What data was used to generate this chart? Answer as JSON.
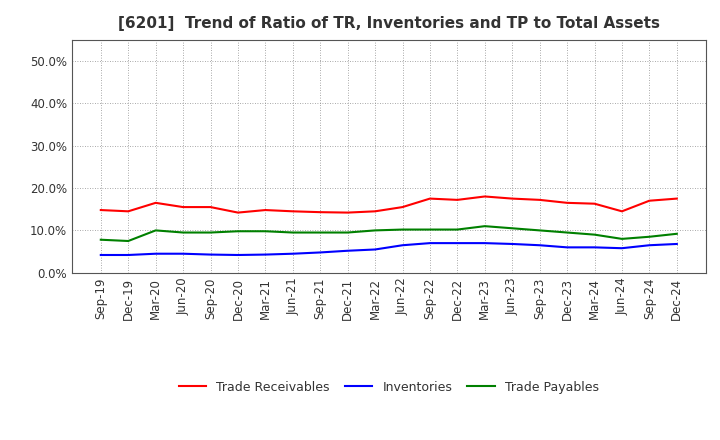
{
  "title": "[6201]  Trend of Ratio of TR, Inventories and TP to Total Assets",
  "x_labels": [
    "Sep-19",
    "Dec-19",
    "Mar-20",
    "Jun-20",
    "Sep-20",
    "Dec-20",
    "Mar-21",
    "Jun-21",
    "Sep-21",
    "Dec-21",
    "Mar-22",
    "Jun-22",
    "Sep-22",
    "Dec-22",
    "Mar-23",
    "Jun-23",
    "Sep-23",
    "Dec-23",
    "Mar-24",
    "Jun-24",
    "Sep-24",
    "Dec-24"
  ],
  "trade_receivables": [
    14.8,
    14.5,
    16.5,
    15.5,
    15.5,
    14.2,
    14.8,
    14.5,
    14.3,
    14.2,
    14.5,
    15.5,
    17.5,
    17.2,
    18.0,
    17.5,
    17.2,
    16.5,
    16.3,
    14.5,
    17.0,
    17.5
  ],
  "inventories": [
    4.2,
    4.2,
    4.5,
    4.5,
    4.3,
    4.2,
    4.3,
    4.5,
    4.8,
    5.2,
    5.5,
    6.5,
    7.0,
    7.0,
    7.0,
    6.8,
    6.5,
    6.0,
    6.0,
    5.8,
    6.5,
    6.8
  ],
  "trade_payables": [
    7.8,
    7.5,
    10.0,
    9.5,
    9.5,
    9.8,
    9.8,
    9.5,
    9.5,
    9.5,
    10.0,
    10.2,
    10.2,
    10.2,
    11.0,
    10.5,
    10.0,
    9.5,
    9.0,
    8.0,
    8.5,
    9.2
  ],
  "ylim": [
    0.0,
    55.0
  ],
  "yticks": [
    0.0,
    10.0,
    20.0,
    30.0,
    40.0,
    50.0
  ],
  "line_colors": {
    "trade_receivables": "#FF0000",
    "inventories": "#0000FF",
    "trade_payables": "#008000"
  },
  "background_color": "#FFFFFF",
  "grid_color": "#808080",
  "title_color": "#333333",
  "tick_label_color": "#333333",
  "legend_labels": [
    "Trade Receivables",
    "Inventories",
    "Trade Payables"
  ],
  "title_fontsize": 11,
  "tick_fontsize": 8.5,
  "legend_fontsize": 9,
  "linewidth": 1.5
}
